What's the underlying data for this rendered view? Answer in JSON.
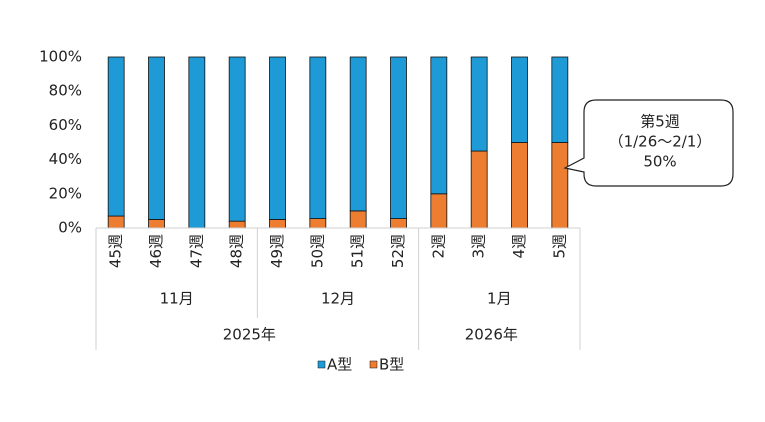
{
  "chart_data": {
    "type": "stacked_bar_100",
    "categories": [
      "45週",
      "46週",
      "47週",
      "48週",
      "49週",
      "50週",
      "51週",
      "52週",
      "2週",
      "3週",
      "4週",
      "5週"
    ],
    "month_groups": [
      {
        "label": "11月",
        "count": 4
      },
      {
        "label": "12月",
        "count": 4
      },
      {
        "label": "1月",
        "count": 4
      }
    ],
    "year_groups": [
      {
        "label": "2025年",
        "count": 8
      },
      {
        "label": "2026年",
        "count": 4
      }
    ],
    "series": [
      {
        "name": "B型",
        "color": "#ed7d31",
        "values": [
          7,
          5,
          0,
          4,
          5,
          5.5,
          10,
          5.5,
          20,
          45,
          50,
          50
        ]
      },
      {
        "name": "A型",
        "color": "#1e9bd7",
        "values": [
          93,
          95,
          100,
          96,
          95,
          94.5,
          90,
          94.5,
          80,
          55,
          50,
          50
        ]
      }
    ],
    "legend_order": [
      "A型",
      "B型"
    ],
    "ylim": [
      0,
      100
    ],
    "yticks": [
      {
        "value": 0,
        "label": "0%"
      },
      {
        "value": 20,
        "label": "20%"
      },
      {
        "value": 40,
        "label": "40%"
      },
      {
        "value": 60,
        "label": "60%"
      },
      {
        "value": 80,
        "label": "80%"
      },
      {
        "value": 100,
        "label": "100%"
      }
    ],
    "annotation": {
      "lines": [
        "第5週",
        "（1/26～2/1）",
        "50%"
      ]
    }
  }
}
